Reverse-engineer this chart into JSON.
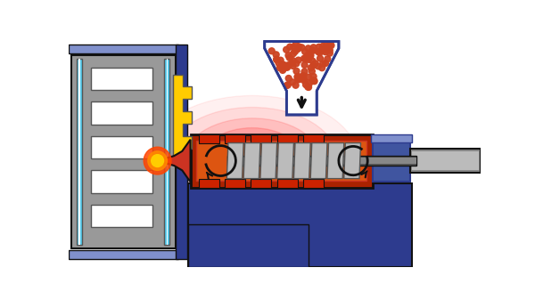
{
  "bg_color": "#ffffff",
  "blue_dark": "#2d3b8e",
  "blue_mid": "#4055a0",
  "blue_light": "#8090cc",
  "gray_dark": "#555555",
  "gray_mid": "#888888",
  "gray_light": "#bbbbbb",
  "gray_mold": "#999999",
  "red_barrel": "#cc3322",
  "red_dark_barrel": "#7a1a10",
  "orange_melt": "#dd5511",
  "yellow_nozzle": "#ffcc00",
  "cyan_channel": "#55ccee",
  "white": "#ffffff",
  "black": "#111111",
  "pellet_color": "#cc4422",
  "heater_red": "#cc2200",
  "barrel_outer_red": "#aa2200"
}
